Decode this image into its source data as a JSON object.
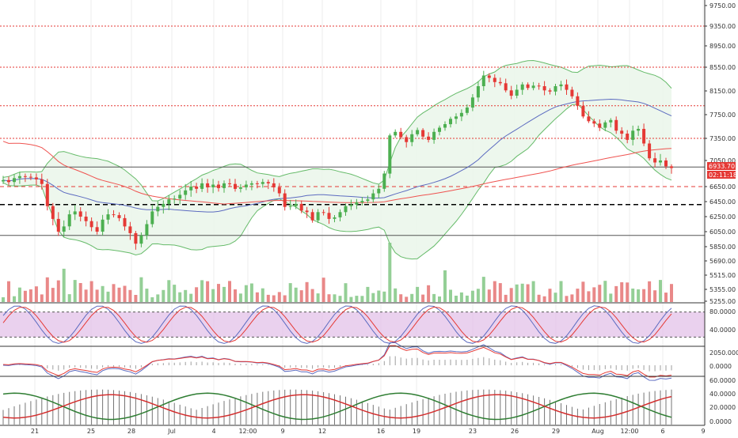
{
  "colors": {
    "up": "#4caf50",
    "down": "#e53935",
    "bb_fill": "#e8f5e9",
    "bb_line": "#66bb6a",
    "sma_blue": "#5c6bc0",
    "sma_red": "#ef5350",
    "hline_red": "#e53935",
    "hline_black": "#000000",
    "stoch_band": "#e1bee7",
    "stoch_k": "#5c6bc0",
    "stoch_d": "#e53935",
    "vol_up": "#81c784",
    "vol_down": "#e57373",
    "adx_plus": "#2e7d32",
    "adx_minus": "#d32f2f",
    "grid": "#eeeeee"
  },
  "price_badge": {
    "price": "6933.70",
    "timer": "02:11:18"
  },
  "chart_data": [
    {
      "type": "candlestick",
      "panel": "price",
      "price_ticks": [
        "9750.00",
        "9350.00",
        "8950.00",
        "8550.00",
        "8150.00",
        "7750.00",
        "7350.00",
        "7050.00",
        "6650.00",
        "6450.00",
        "6250.00",
        "6050.00",
        "5850.00",
        "5690.00",
        "5515.00",
        "5355.00",
        "5255.00"
      ],
      "price_tick_values": [
        9750,
        9350,
        8950,
        8550,
        8150,
        7750,
        7350,
        7050,
        6650,
        6450,
        6250,
        6050,
        5850,
        5690,
        5515,
        5355,
        5255
      ],
      "ylim": [
        5255,
        9750
      ],
      "date_ticks": [
        "21",
        "25",
        "28",
        "Jul",
        "4",
        "12:00",
        "9",
        "12",
        "16",
        "19",
        "23",
        "26",
        "29",
        "Aug",
        "12:00",
        "6",
        "9"
      ],
      "red_dotted_levels": [
        9350,
        8550,
        7900,
        7350
      ],
      "gray_solid_levels": [
        6950,
        6000
      ],
      "dashed_black_level": 6410,
      "dashed_red_level": 6650,
      "closes": [
        6750,
        6720,
        6780,
        6810,
        6800,
        6790,
        6760,
        6690,
        6390,
        6220,
        6050,
        6120,
        6280,
        6320,
        6250,
        6190,
        6110,
        6050,
        6210,
        6280,
        6270,
        6230,
        6120,
        6030,
        5890,
        6000,
        6150,
        6320,
        6380,
        6420,
        6480,
        6490,
        6540,
        6600,
        6650,
        6620,
        6700,
        6640,
        6680,
        6630,
        6700,
        6690,
        6620,
        6640,
        6680,
        6700,
        6690,
        6720,
        6700,
        6640,
        6560,
        6380,
        6390,
        6420,
        6330,
        6310,
        6200,
        6310,
        6300,
        6220,
        6240,
        6310,
        6390,
        6410,
        6440,
        6460,
        6480,
        6560,
        6620,
        6850,
        7400,
        7460,
        7370,
        7300,
        7420,
        7490,
        7380,
        7330,
        7460,
        7530,
        7590,
        7680,
        7720,
        7780,
        7870,
        8040,
        8230,
        8410,
        8370,
        8300,
        8280,
        8160,
        8070,
        8170,
        8260,
        8200,
        8240,
        8230,
        8160,
        8140,
        8230,
        8260,
        8170,
        8060,
        7900,
        7720,
        7640,
        7600,
        7530,
        7620,
        7660,
        7480,
        7430,
        7330,
        7480,
        7510,
        7280,
        7080,
        7020,
        7050,
        6960,
        6934
      ],
      "stoch_ticks": [
        "80.0000",
        "40.0000"
      ],
      "macd_ticks": [
        "0.0000"
      ],
      "adx_ticks": [
        "60.0000",
        "40.0000",
        "20.0000",
        "0.0000"
      ]
    }
  ]
}
